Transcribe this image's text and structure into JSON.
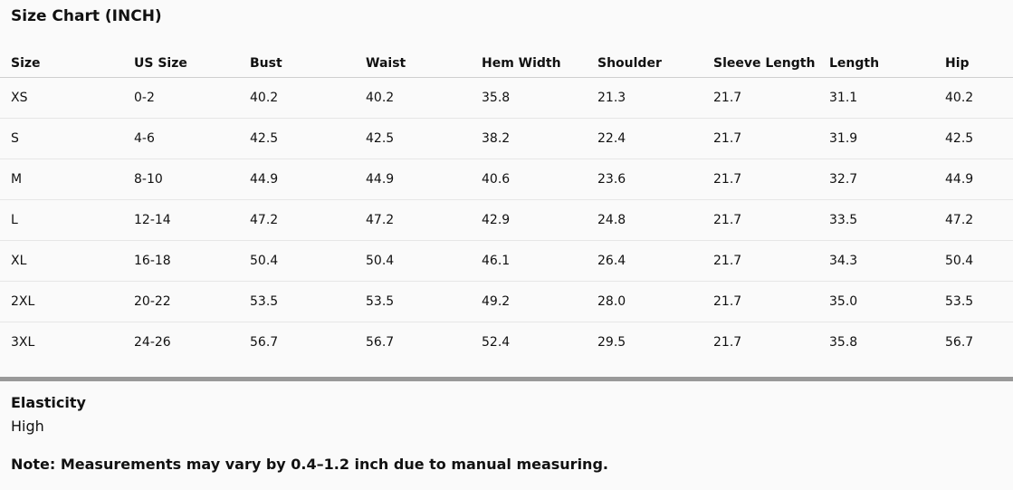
{
  "title": "Size Chart (INCH)",
  "table": {
    "columns": [
      "Size",
      "US Size",
      "Bust",
      "Waist",
      "Hem Width",
      "Shoulder",
      "Sleeve Length",
      "Length",
      "Hip"
    ],
    "rows": [
      [
        "XS",
        "0-2",
        "40.2",
        "40.2",
        "35.8",
        "21.3",
        "21.7",
        "31.1",
        "40.2"
      ],
      [
        "S",
        "4-6",
        "42.5",
        "42.5",
        "38.2",
        "22.4",
        "21.7",
        "31.9",
        "42.5"
      ],
      [
        "M",
        "8-10",
        "44.9",
        "44.9",
        "40.6",
        "23.6",
        "21.7",
        "32.7",
        "44.9"
      ],
      [
        "L",
        "12-14",
        "47.2",
        "47.2",
        "42.9",
        "24.8",
        "21.7",
        "33.5",
        "47.2"
      ],
      [
        "XL",
        "16-18",
        "50.4",
        "50.4",
        "46.1",
        "26.4",
        "21.7",
        "34.3",
        "50.4"
      ],
      [
        "2XL",
        "20-22",
        "53.5",
        "53.5",
        "49.2",
        "28.0",
        "21.7",
        "35.0",
        "53.5"
      ],
      [
        "3XL",
        "24-26",
        "56.7",
        "56.7",
        "52.4",
        "29.5",
        "21.7",
        "35.8",
        "56.7"
      ]
    ]
  },
  "elasticity": {
    "label": "Elasticity",
    "value": "High"
  },
  "note": "Note: Measurements may vary by 0.4–1.2 inch due to manual measuring."
}
